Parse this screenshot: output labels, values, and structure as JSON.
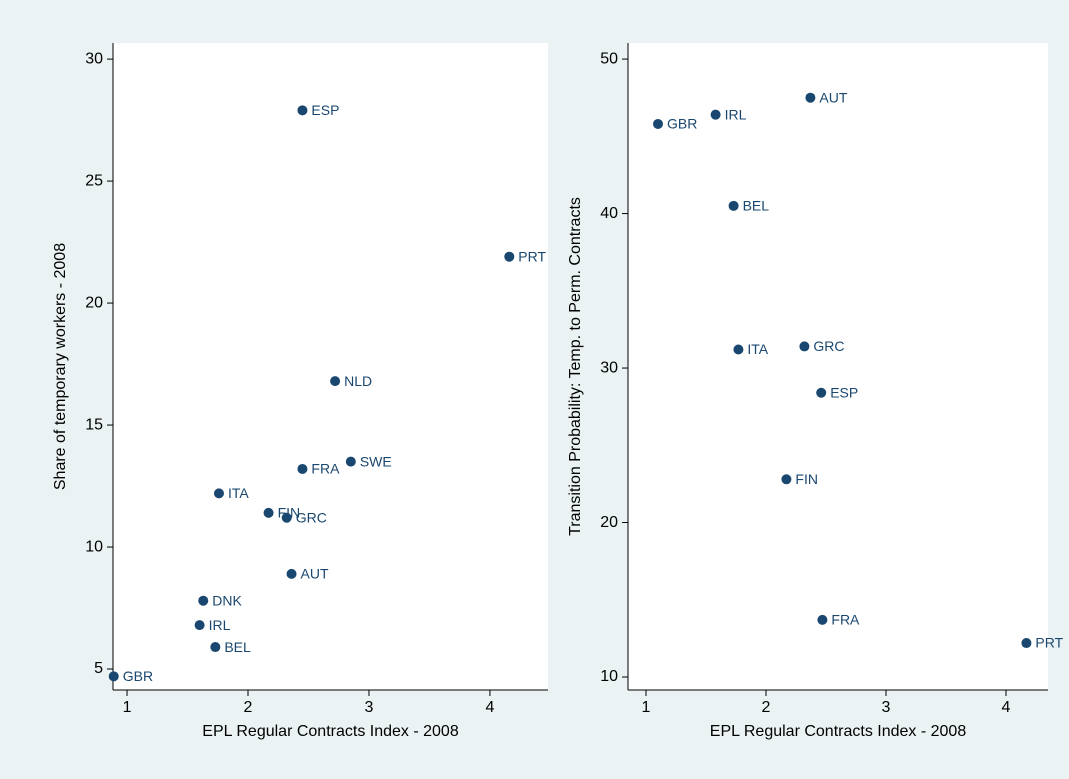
{
  "chart_data": [
    {
      "type": "scatter",
      "x_label": "EPL Regular Contracts Index - 2008",
      "y_label": "Share of temporary workers - 2008",
      "color": "#1a476f",
      "labels": [
        "ESP",
        "PRT",
        "NLD",
        "SWE",
        "FRA",
        "ITA",
        "FIN",
        "GRC",
        "AUT",
        "DNK",
        "IRL",
        "BEL",
        "GBR"
      ],
      "x": [
        2.45,
        4.16,
        2.72,
        2.85,
        2.45,
        1.76,
        2.17,
        2.32,
        2.36,
        1.63,
        1.6,
        1.73,
        0.89
      ],
      "values": [
        27.9,
        21.9,
        16.8,
        13.5,
        13.2,
        12.2,
        11.4,
        11.2,
        8.9,
        7.8,
        6.8,
        5.9,
        4.7
      ],
      "xlim": [
        0.884,
        4.48
      ],
      "ylim": [
        4.14,
        30.66
      ],
      "xticks": [
        1,
        2,
        3,
        4
      ],
      "yticks": [
        5,
        10,
        15,
        20,
        25,
        30
      ]
    },
    {
      "type": "scatter",
      "x_label": "EPL Regular Contracts Index - 2008",
      "y_label": "Transition Probability: Temp. to Perm. Contracts",
      "color": "#1a476f",
      "labels": [
        "AUT",
        "GBR",
        "IRL",
        "BEL",
        "ITA",
        "GRC",
        "ESP",
        "FIN",
        "FRA",
        "PRT"
      ],
      "x": [
        2.37,
        1.1,
        1.58,
        1.73,
        1.77,
        2.32,
        2.46,
        2.17,
        2.47,
        4.17
      ],
      "values": [
        47.5,
        45.8,
        46.4,
        40.5,
        31.2,
        31.4,
        28.4,
        22.8,
        13.7,
        12.2
      ],
      "xlim": [
        0.85,
        4.35
      ],
      "ylim": [
        9.16,
        51.04
      ],
      "xticks": [
        1,
        2,
        3,
        4
      ],
      "yticks": [
        10,
        20,
        30,
        40,
        50
      ]
    }
  ]
}
